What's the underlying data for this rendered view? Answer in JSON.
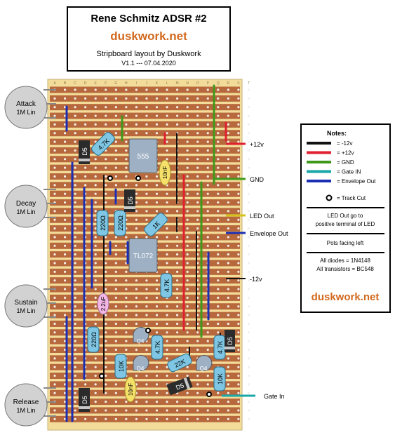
{
  "title_box": {
    "title": "Rene Schmitz ADSR #2",
    "brand": "duskwork.net",
    "subtitle": "Stripboard layout by Duskwork",
    "version": "V1.1 --- 07.04.2020"
  },
  "board": {
    "column_letters": [
      "A",
      "B",
      "C",
      "D",
      "E",
      "F",
      "G",
      "H",
      "I",
      "J",
      "K",
      "L",
      "M",
      "N",
      "O",
      "P",
      "Q",
      "R",
      "S",
      "T"
    ],
    "colors": {
      "board": "#f3dc9a",
      "strip": "#b7683c",
      "hole": "#f2f0ea"
    }
  },
  "pots": [
    {
      "name": "Attack",
      "value": "1M Lin"
    },
    {
      "name": "Decay",
      "value": "1M Lin"
    },
    {
      "name": "Sustain",
      "value": "1M Lin"
    },
    {
      "name": "Release",
      "value": "1M Lin"
    }
  ],
  "components": {
    "ic_555": "555",
    "ic_tl072": "TL072",
    "r_4k7_top": "4.7K",
    "r_220_a": "220Ω",
    "r_220_b": "220Ω",
    "r_1k": "1K",
    "r_4k7_mid": "4.7K",
    "c_10nf_top": "10nF",
    "c_2u2": "2.2uF",
    "r_220_c": "220Ω",
    "r_10k": "10K",
    "c_10nf_bot": "10nF",
    "r_4k7_q": "4.7K",
    "r_22k": "22K",
    "r_4k7_right": "4.7K",
    "r_10k_right": "10K",
    "d5_1": "D5",
    "d5_2": "D5",
    "d5_3": "D5",
    "d5_4": "D5",
    "d5_5": "D5",
    "q4_1": "Q4",
    "q4_2": "Q4",
    "q4_3": "Q4"
  },
  "connections": {
    "plus12": "+12v",
    "gnd": "GND",
    "led_out": "LED Out",
    "env_out": "Envelope Out",
    "minus12": "-12v",
    "gate_in": "Gate In"
  },
  "notes": {
    "heading": "Notes:",
    "legend": [
      {
        "label": "= -12v",
        "color": "#111111"
      },
      {
        "label": "= +12v",
        "color": "#e0202f"
      },
      {
        "label": "= GND",
        "color": "#3f9a1c"
      },
      {
        "label": "= Gate IN",
        "color": "#19a7a7"
      },
      {
        "label": "= Envelope Out",
        "color": "#1b2fb5"
      }
    ],
    "track_cut": "= Track Cut",
    "led_note_1": "LED Out go to",
    "led_note_2": "positive terminal of LED",
    "pots_note": "Pots facing left",
    "diodes_note": "All diodes = 1N4148",
    "transistors_note": "All transistors = BC548",
    "brand": "duskwork.net"
  }
}
